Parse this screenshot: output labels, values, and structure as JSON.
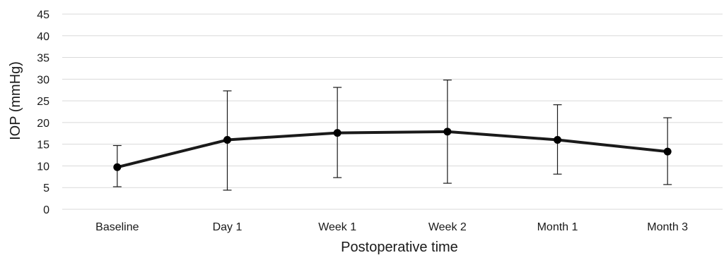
{
  "chart_data": {
    "type": "line",
    "title": "",
    "xlabel": "Postoperative time",
    "ylabel": "IOP (mmHg)",
    "categories": [
      "Baseline",
      "Day 1",
      "Week 1",
      "Week 2",
      "Month 1",
      "Month 3"
    ],
    "series": [
      {
        "values": [
          9.7,
          16.0,
          17.6,
          17.9,
          16.0,
          13.3
        ],
        "error_low": [
          5.2,
          4.4,
          7.3,
          6.0,
          8.1,
          5.7
        ],
        "error_high": [
          14.7,
          27.3,
          28.1,
          29.8,
          24.1,
          21.1
        ]
      }
    ],
    "ylim": [
      0,
      45
    ],
    "yticks": [
      "0",
      "5",
      "10",
      "15",
      "20",
      "25",
      "30",
      "35",
      "40",
      "45"
    ],
    "grid": true,
    "line_color": "#1a1a1a",
    "marker_color": "#000000",
    "grid_color": "#d9d9d9"
  }
}
